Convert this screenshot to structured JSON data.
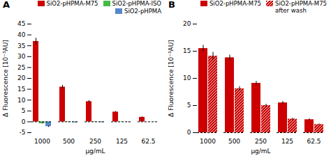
{
  "chart_data": [
    {
      "type": "bar",
      "title": "A",
      "xlabel": "μg/mL",
      "ylabel": "Δ Fluorescence [10⁻³AU]",
      "categories": [
        "1000",
        "500",
        "250",
        "125",
        "62.5"
      ],
      "series": [
        {
          "name": "SiO2-pHPMA-M75",
          "color": "#cc0000",
          "values": [
            37.0,
            16.0,
            9.3,
            4.5,
            2.1
          ],
          "errors": [
            1.5,
            0.8,
            0.5,
            0.3,
            0.2
          ]
        },
        {
          "name": "SiO2-pHPMA-ISO",
          "color": "#44bb44",
          "values": [
            -0.8,
            -0.2,
            -0.15,
            -0.1,
            -0.05
          ],
          "errors": [
            0.15,
            0.08,
            0.06,
            0.04,
            0.03
          ]
        },
        {
          "name": "SiO2-pHPMA",
          "color": "#5588cc",
          "values": [
            -2.2,
            -0.35,
            -0.25,
            -0.1,
            -0.05
          ],
          "errors": [
            0.3,
            0.08,
            0.06,
            0.04,
            0.03
          ]
        }
      ],
      "ylim": [
        -5,
        45
      ],
      "yticks": [
        -5,
        0,
        5,
        10,
        15,
        20,
        25,
        30,
        35,
        40,
        45
      ],
      "grid": false,
      "legend": "upper right"
    },
    {
      "type": "bar",
      "title": "B",
      "xlabel": "μg/mL",
      "ylabel": "Δ Fluorescence [10⁻³AU]",
      "categories": [
        "1000",
        "500",
        "250",
        "125",
        "62.5"
      ],
      "series": [
        {
          "name": "SiO2-pHPMA-M75",
          "color": "#cc0000",
          "values": [
            15.5,
            13.8,
            9.1,
            5.5,
            2.4
          ],
          "errors": [
            0.6,
            0.5,
            0.35,
            0.25,
            0.15
          ]
        },
        {
          "name": "SiO2-pHPMA-M75\nafter wash",
          "color": "#cc0000",
          "values": [
            14.1,
            8.1,
            5.0,
            2.5,
            1.5
          ],
          "errors": [
            0.7,
            0.4,
            0.25,
            0.18,
            0.12
          ]
        }
      ],
      "ylim": [
        0,
        20
      ],
      "yticks": [
        0,
        5,
        10,
        15,
        20
      ],
      "grid": false,
      "legend": "upper right"
    }
  ]
}
